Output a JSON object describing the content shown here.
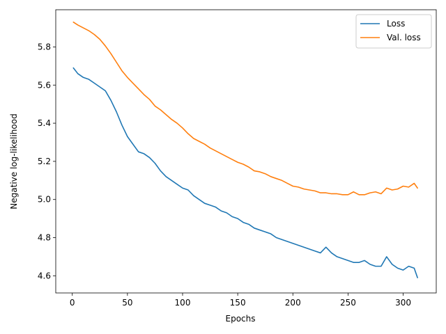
{
  "chart_data": {
    "type": "line",
    "title": "",
    "xlabel": "Epochs",
    "ylabel": "Negative log-likelihood",
    "xlim": [
      -15,
      330
    ],
    "ylim": [
      4.51,
      5.995
    ],
    "x_ticks": [
      0,
      50,
      100,
      150,
      200,
      250,
      300
    ],
    "y_ticks": [
      4.6,
      4.8,
      5.0,
      5.2,
      5.4,
      5.6,
      5.8
    ],
    "x_tick_labels": [
      "0",
      "50",
      "100",
      "150",
      "200",
      "250",
      "300"
    ],
    "y_tick_labels": [
      "4.6",
      "4.8",
      "5.0",
      "5.2",
      "5.4",
      "5.6",
      "5.8"
    ],
    "grid": false,
    "legend_position": "top-right",
    "series": [
      {
        "name": "Loss",
        "color": "#1f77b4",
        "x": [
          1,
          5,
          10,
          15,
          20,
          25,
          30,
          35,
          40,
          45,
          50,
          55,
          60,
          65,
          70,
          75,
          80,
          85,
          90,
          95,
          100,
          105,
          110,
          115,
          120,
          125,
          130,
          135,
          140,
          145,
          150,
          155,
          160,
          165,
          170,
          175,
          180,
          185,
          190,
          195,
          200,
          205,
          210,
          215,
          220,
          225,
          230,
          235,
          240,
          245,
          250,
          255,
          260,
          265,
          270,
          275,
          280,
          285,
          290,
          295,
          300,
          305,
          310,
          313
        ],
        "y": [
          5.69,
          5.66,
          5.64,
          5.63,
          5.61,
          5.59,
          5.57,
          5.52,
          5.46,
          5.39,
          5.33,
          5.29,
          5.25,
          5.24,
          5.22,
          5.19,
          5.15,
          5.12,
          5.1,
          5.08,
          5.06,
          5.05,
          5.02,
          5.0,
          4.98,
          4.97,
          4.96,
          4.94,
          4.93,
          4.91,
          4.9,
          4.88,
          4.87,
          4.85,
          4.84,
          4.83,
          4.82,
          4.8,
          4.79,
          4.78,
          4.77,
          4.76,
          4.75,
          4.74,
          4.73,
          4.72,
          4.75,
          4.72,
          4.7,
          4.69,
          4.68,
          4.67,
          4.67,
          4.68,
          4.66,
          4.65,
          4.65,
          4.7,
          4.66,
          4.64,
          4.63,
          4.65,
          4.64,
          4.59
        ]
      },
      {
        "name": "Val. loss",
        "color": "#ff7f0e",
        "x": [
          1,
          5,
          10,
          15,
          20,
          25,
          30,
          35,
          40,
          45,
          50,
          55,
          60,
          65,
          70,
          75,
          80,
          85,
          90,
          95,
          100,
          105,
          110,
          115,
          120,
          125,
          130,
          135,
          140,
          145,
          150,
          155,
          160,
          165,
          170,
          175,
          180,
          185,
          190,
          195,
          200,
          205,
          210,
          215,
          220,
          225,
          230,
          235,
          240,
          245,
          250,
          255,
          260,
          265,
          270,
          275,
          280,
          285,
          290,
          295,
          300,
          305,
          310,
          313
        ],
        "y": [
          5.93,
          5.915,
          5.9,
          5.885,
          5.865,
          5.84,
          5.805,
          5.765,
          5.72,
          5.675,
          5.64,
          5.61,
          5.58,
          5.55,
          5.525,
          5.49,
          5.47,
          5.445,
          5.42,
          5.4,
          5.375,
          5.345,
          5.32,
          5.305,
          5.29,
          5.27,
          5.255,
          5.24,
          5.225,
          5.21,
          5.195,
          5.185,
          5.17,
          5.15,
          5.145,
          5.135,
          5.12,
          5.11,
          5.1,
          5.085,
          5.07,
          5.065,
          5.055,
          5.05,
          5.045,
          5.035,
          5.035,
          5.03,
          5.03,
          5.025,
          5.025,
          5.04,
          5.025,
          5.025,
          5.035,
          5.04,
          5.03,
          5.06,
          5.05,
          5.055,
          5.07,
          5.065,
          5.085,
          5.06
        ]
      }
    ]
  }
}
